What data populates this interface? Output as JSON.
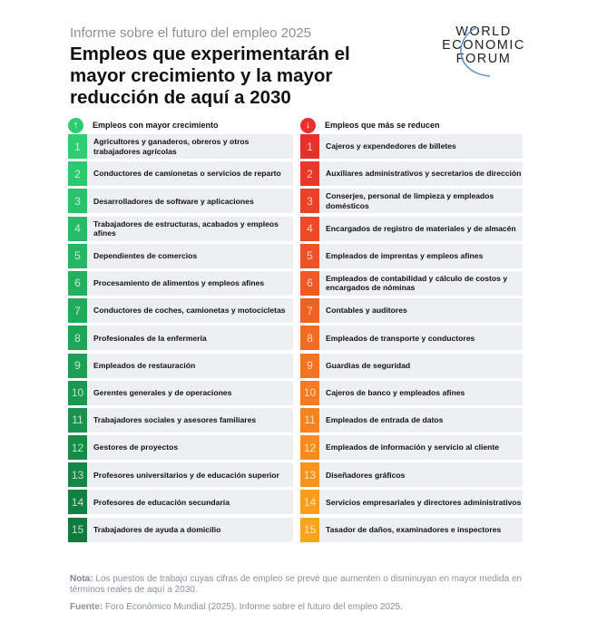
{
  "report": "Informe sobre el futuro del empleo 2025",
  "title": "Empleos que experimentarán el mayor crecimiento y la mayor reducción de aquí a 2030",
  "logo": {
    "line1": "WORLD",
    "line2": "ECONOMIC",
    "line3": "FORUM"
  },
  "growth": {
    "header": "Empleos con mayor crecimiento",
    "icon": "arrow-up-icon",
    "color": "#2ecc71",
    "items": [
      "Agricultores y ganaderos, obreros y otros trabajadores agrícolas",
      "Conductores de camionetas o servicios de reparto",
      "Desarrolladores de software y aplicaciones",
      "Trabajadores de estructuras, acabados y empleos afines",
      "Dependientes de comercios",
      "Procesamiento de alimentos y empleos afines",
      "Conductores de coches, camionetas y motocicletas",
      "Profesionales de la enfermería",
      "Empleados de restauración",
      "Gerentes generales y de operaciones",
      "Trabajadores sociales y asesores familiares",
      "Gestores de proyectos",
      "Profesores universitarios y de educación superior",
      "Profesores de educación secundaria",
      "Trabajadores de ayuda a domicilio"
    ]
  },
  "decline": {
    "header": "Empleos que más se reducen",
    "icon": "arrow-down-icon",
    "color": "#e8312b",
    "items": [
      "Cajeros y expendedores de billetes",
      "Auxiliares administrativos y secretarios de dirección",
      "Conserjes, personal de limpieza y empleados domésticos",
      "Encargados de registro de materiales y de almacén",
      "Empleados de imprentas y empleos afines",
      "Empleados de contabilidad y cálculo de costos y encargados de nóminas",
      "Contables y auditores",
      "Empleados de transporte y conductores",
      "Guardias de seguridad",
      "Cajeros de banco y empleados afines",
      "Empleados de entrada de datos",
      "Empleados de información y servicio al cliente",
      "Diseñadores gráficos",
      "Servicios empresariales y directores administrativos",
      "Tasador de daños, examinadores e inspectores"
    ]
  },
  "note_label": "Nota:",
  "note": "Los puestos de trabajo cuyas cifras de empleo se prevé que aumenten o disminuyan en mayor medida en términos reales de aquí a 2030.",
  "source_label": "Fuente:",
  "source": "Foro Económico Mundial (2025). Informe sobre el futuro del empleo 2025."
}
